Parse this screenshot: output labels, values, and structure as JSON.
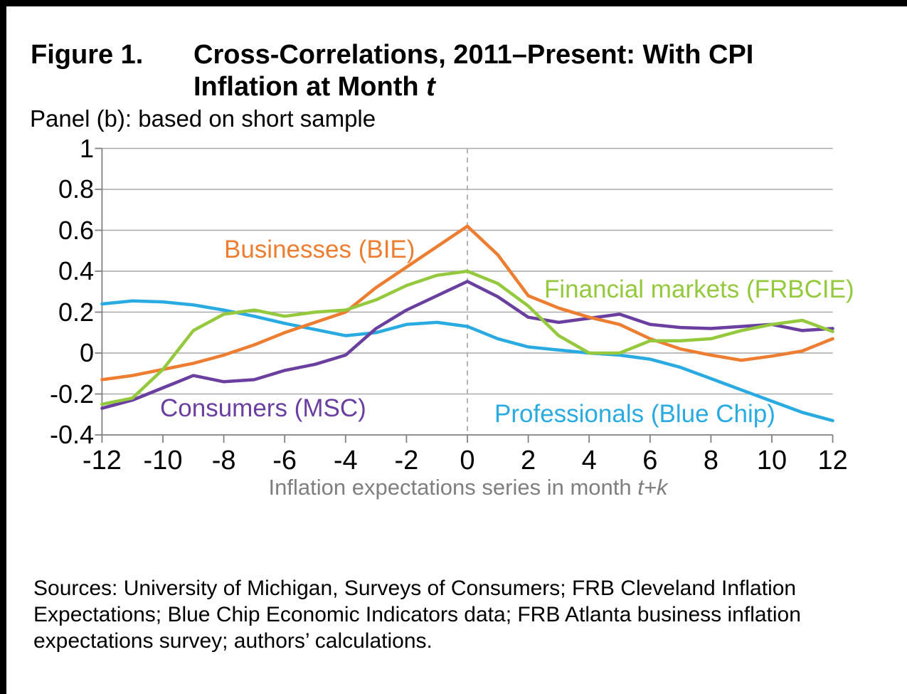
{
  "figure": {
    "label": "Figure 1.",
    "title_line1": "Cross-Correlations, 2011–Present: With CPI",
    "title_line2_prefix": "Inflation at Month ",
    "title_line2_italic": "t",
    "panel": "Panel (b): based on short sample"
  },
  "x_axis": {
    "title_prefix": "Inflation expectations series in month ",
    "title_italic": "t+k",
    "tick_labels": [
      "-12",
      "-10",
      "-8",
      "-6",
      "-4",
      "-2",
      "0",
      "2",
      "4",
      "6",
      "8",
      "10",
      "12"
    ]
  },
  "y_axis": {
    "tick_labels": [
      "1",
      "0.8",
      "0.6",
      "0.4",
      "0.2",
      "0",
      "-0.2",
      "-0.4"
    ]
  },
  "sources": {
    "line1": "Sources: University of Michigan, Surveys of Consumers; FRB Cleveland Inflation",
    "line2": "Expectations; Blue Chip Economic Indicators data; FRB Atlanta business inflation",
    "line3": "expectations survey; authors’ calculations."
  },
  "colors": {
    "gridline": "#a9a9a9",
    "axis": "#808080",
    "reference_line": "#b2b2b2",
    "background": "#ffffff",
    "title_text": "#000000",
    "axis_title_text": "#7f7f7f"
  },
  "chart_data": {
    "type": "line",
    "title": "Figure 1. Cross-Correlations, 2011–Present: With CPI Inflation at Month t — Panel (b): based on short sample",
    "xlabel": "Inflation expectations series in month t+k",
    "ylabel": "",
    "xlim": [
      -12,
      12
    ],
    "ylim": [
      -0.4,
      1
    ],
    "x_ticks": [
      -12,
      -10,
      -8,
      -6,
      -4,
      -2,
      0,
      2,
      4,
      6,
      8,
      10,
      12
    ],
    "y_ticks": [
      1,
      0.8,
      0.6,
      0.4,
      0.2,
      0,
      -0.2,
      -0.4
    ],
    "grid": "horizontal",
    "legend_position": "inline-labels",
    "reference_line": {
      "type": "vertical-dashed",
      "x": 0
    },
    "x": [
      -12,
      -11,
      -10,
      -9,
      -8,
      -7,
      -6,
      -5,
      -4,
      -3,
      -2,
      -1,
      0,
      1,
      2,
      3,
      4,
      5,
      6,
      7,
      8,
      9,
      10,
      11,
      12
    ],
    "series": [
      {
        "id": "businesses-bie",
        "name": "Businesses (BIE)",
        "color": "#ED7D31",
        "values": [
          -0.13,
          -0.11,
          -0.08,
          -0.05,
          -0.01,
          0.04,
          0.1,
          0.15,
          0.2,
          0.32,
          0.42,
          0.52,
          0.62,
          0.48,
          0.28,
          0.22,
          0.175,
          0.14,
          0.07,
          0.02,
          -0.01,
          -0.035,
          -0.015,
          0.01,
          0.07
        ]
      },
      {
        "id": "financial-markets-frbcie",
        "name": "Financial markets (FRBCIE)",
        "color": "#95C93D",
        "values": [
          -0.25,
          -0.22,
          -0.08,
          0.11,
          0.19,
          0.21,
          0.18,
          0.2,
          0.21,
          0.26,
          0.33,
          0.38,
          0.4,
          0.34,
          0.23,
          0.085,
          0.0,
          0.0,
          0.06,
          0.06,
          0.07,
          0.11,
          0.14,
          0.16,
          0.105
        ]
      },
      {
        "id": "consumers-msc",
        "name": "Consumers (MSC)",
        "color": "#6A3FA0",
        "values": [
          -0.27,
          -0.23,
          -0.17,
          -0.11,
          -0.14,
          -0.13,
          -0.085,
          -0.055,
          -0.01,
          0.12,
          0.21,
          0.28,
          0.35,
          0.275,
          0.175,
          0.15,
          0.17,
          0.19,
          0.14,
          0.125,
          0.12,
          0.13,
          0.14,
          0.11,
          0.12
        ]
      },
      {
        "id": "professionals-blue-chip",
        "name": "Professionals (Blue Chip)",
        "color": "#29ABE2",
        "values": [
          0.24,
          0.255,
          0.25,
          0.235,
          0.21,
          0.18,
          0.145,
          0.115,
          0.085,
          0.1,
          0.14,
          0.15,
          0.13,
          0.07,
          0.03,
          0.015,
          0.0,
          -0.01,
          -0.03,
          -0.07,
          -0.125,
          -0.18,
          -0.235,
          -0.29,
          -0.33
        ]
      }
    ]
  }
}
